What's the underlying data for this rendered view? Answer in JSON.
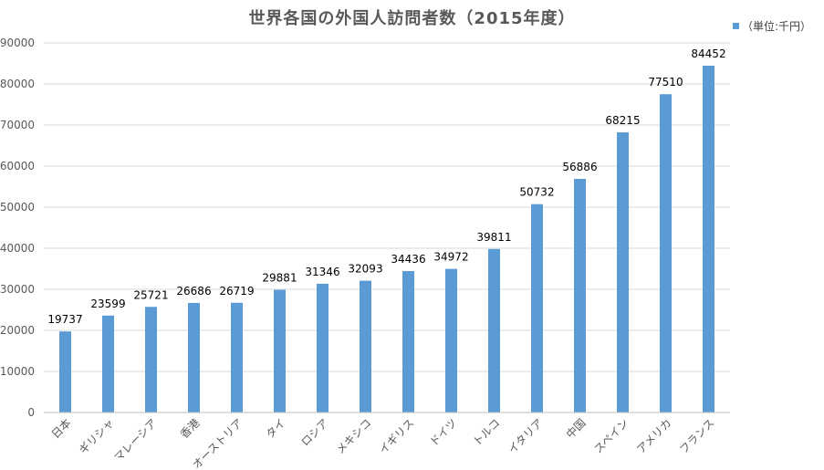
{
  "chart_data": {
    "type": "bar",
    "title": "世界各国の外国人訪問者数（2015年度）",
    "legend": {
      "label": "（単位:千円）",
      "placement": "top-right"
    },
    "categories": [
      "日本",
      "ギリシャ",
      "マレーシア",
      "香港",
      "オーストリア",
      "タイ",
      "ロシア",
      "メキシコ",
      "イギリス",
      "ドイツ",
      "トルコ",
      "イタリア",
      "中国",
      "スペイン",
      "アメリカ",
      "フランス"
    ],
    "series": [
      {
        "values": [
          19737,
          23599,
          25721,
          26686,
          26719,
          29881,
          31346,
          32093,
          34436,
          34972,
          39811,
          50732,
          56886,
          68215,
          77510,
          84452
        ]
      }
    ],
    "yticks": [
      "0",
      "10000",
      "20000",
      "30000",
      "40000",
      "50000",
      "60000",
      "70000",
      "80000",
      "90000"
    ],
    "ylim": [
      0,
      90000
    ],
    "grid": true,
    "colors": {
      "bar": "#5b9bd5",
      "grid": "#d9d9d9",
      "axis_text": "#595959"
    }
  }
}
